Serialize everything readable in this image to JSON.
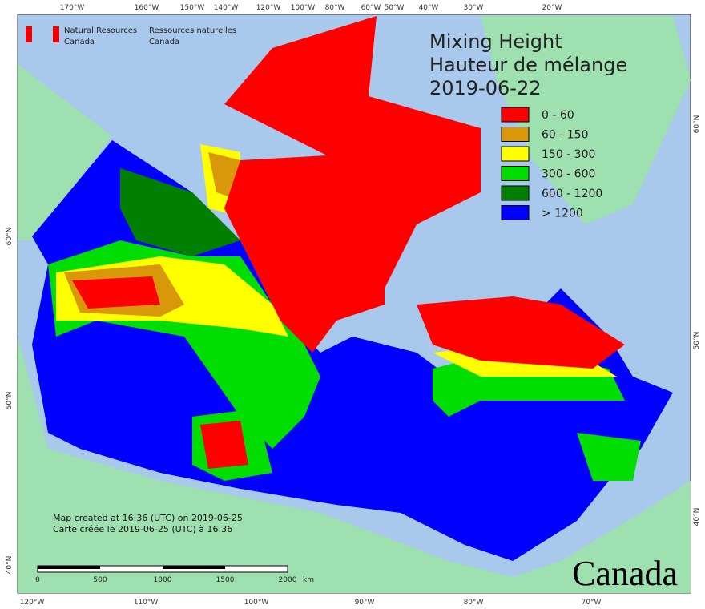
{
  "header": {
    "agency_en": "Natural Resources",
    "country_en": "Canada",
    "agency_fr": "Ressources naturelles",
    "country_fr": "Canada"
  },
  "title": [
    "Mixing Height",
    "Hauteur de mélange",
    "2019-06-22"
  ],
  "legend": {
    "items": [
      {
        "label": "0 - 60",
        "color": "#ff0000"
      },
      {
        "label": "60 - 150",
        "color": "#d9980a"
      },
      {
        "label": "150 - 300",
        "color": "#ffff00"
      },
      {
        "label": "300 - 600",
        "color": "#00dd00"
      },
      {
        "label": "600 - 1200",
        "color": "#007f00"
      },
      {
        "label": "> 1200",
        "color": "#0000ff"
      }
    ]
  },
  "graticule": {
    "top": [
      "170°W",
      "160°W",
      "150°W",
      "140°W",
      "120°W",
      "100°W",
      "80°W",
      "60°W",
      "50°W",
      "40°W",
      "30°W",
      "20°W"
    ],
    "bottom": [
      "120°W",
      "110°W",
      "100°W",
      "90°W",
      "80°W",
      "70°W"
    ],
    "left": [
      "60°N",
      "50°N",
      "40°N"
    ],
    "right": [
      "60°N",
      "50°N",
      "40°N"
    ]
  },
  "footer": [
    "Map created at 16:36 (UTC) on 2019-06-25",
    "Carte créée le 2019-06-25 (UTC) à 16:36"
  ],
  "scale_bar": {
    "ticks": [
      "0",
      "500",
      "1000",
      "1500",
      "2000"
    ],
    "unit": "km"
  },
  "wordmark": "Canada"
}
